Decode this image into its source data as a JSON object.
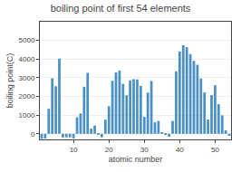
{
  "chart_data": {
    "type": "bar",
    "title": "boiling point of first 54 elements",
    "xlabel": "atomic number",
    "ylabel": "boiling point(C)",
    "x": [
      1,
      2,
      3,
      4,
      5,
      6,
      7,
      8,
      9,
      10,
      11,
      12,
      13,
      14,
      15,
      16,
      17,
      18,
      19,
      20,
      21,
      22,
      23,
      24,
      25,
      26,
      27,
      28,
      29,
      30,
      31,
      32,
      33,
      34,
      35,
      36,
      37,
      38,
      39,
      40,
      41,
      42,
      43,
      44,
      45,
      46,
      47,
      48,
      49,
      50,
      51,
      52,
      53,
      54
    ],
    "values": [
      -269,
      -253,
      1342,
      2970,
      2550,
      4027,
      -196,
      -183,
      -188,
      -246,
      883,
      1090,
      2519,
      3265,
      280,
      445,
      -34,
      -186,
      759,
      1484,
      2836,
      3287,
      3380,
      2672,
      2061,
      2861,
      2927,
      2913,
      2562,
      907,
      2204,
      2830,
      614,
      685,
      59,
      -62,
      -153,
      688,
      3345,
      4409,
      4740,
      4639,
      4265,
      3900,
      3695,
      2963,
      2212,
      767,
      2072,
      2602,
      1587,
      988,
      184,
      -108
    ],
    "color": "#4a90c4",
    "xlim": [
      0.5,
      54.5
    ],
    "xticks": [
      10,
      20,
      30,
      40,
      50
    ],
    "ylim": [
      -300,
      6000
    ],
    "yticks": [
      0,
      1000,
      2000,
      3000,
      4000,
      5000
    ],
    "grid": "y"
  }
}
